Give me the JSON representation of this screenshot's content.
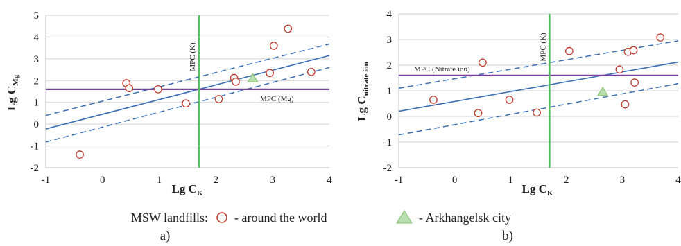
{
  "chart_data": [
    {
      "panel_label": "a)",
      "type": "scatter",
      "xlabel_main": "Lg C",
      "xlabel_sub": "K",
      "ylabel_main": "Lg C",
      "ylabel_sub": "Mg",
      "xlim": [
        -1,
        4
      ],
      "ylim": [
        -2,
        5
      ],
      "xticks": [
        "-1",
        "0",
        "1",
        "2",
        "3",
        "4"
      ],
      "yticks": [
        "-2",
        "-1",
        "0",
        "1",
        "2",
        "3",
        "4",
        "5"
      ],
      "grid": "horizontal",
      "points_world": [
        [
          -0.4,
          -1.4
        ],
        [
          0.42,
          1.88
        ],
        [
          0.47,
          1.65
        ],
        [
          0.98,
          1.6
        ],
        [
          1.47,
          0.95
        ],
        [
          2.05,
          1.15
        ],
        [
          2.32,
          2.12
        ],
        [
          2.35,
          1.95
        ],
        [
          2.95,
          2.35
        ],
        [
          3.02,
          3.6
        ],
        [
          3.27,
          4.38
        ],
        [
          3.68,
          2.4
        ]
      ],
      "points_arkhangelsk": [
        [
          2.65,
          2.1
        ]
      ],
      "regression": {
        "x": [
          -1,
          4
        ],
        "y": [
          -0.22,
          3.15
        ]
      },
      "ci_upper": {
        "x": [
          -1,
          4
        ],
        "y": [
          0.4,
          3.68
        ]
      },
      "ci_lower": {
        "x": [
          -1,
          4
        ],
        "y": [
          -0.82,
          2.6
        ]
      },
      "mpc_vertical": {
        "x": 1.7,
        "label": "MPC (K)"
      },
      "mpc_horizontal": {
        "y": 1.6,
        "label": "MPC (Mg)"
      },
      "colors": {
        "world": "#c0392b",
        "arkhangelsk_fill": "#b9dfae",
        "arkhangelsk_stroke": "#7fbf6a",
        "regression": "#3a6fb4",
        "mpc_vertical": "#4dbb5a",
        "mpc_horizontal": "#7b3fa0"
      }
    },
    {
      "panel_label": "b)",
      "type": "scatter",
      "xlabel_main": "Lg C",
      "xlabel_sub": "K",
      "ylabel_main": "Lg C",
      "ylabel_sub": "nitrate ion",
      "xlim": [
        -1,
        4
      ],
      "ylim": [
        -2,
        4
      ],
      "xticks": [
        "-1",
        "0",
        "1",
        "2",
        "3",
        "4"
      ],
      "yticks": [
        "-2",
        "-1",
        "0",
        "1",
        "2",
        "3",
        "4"
      ],
      "grid": "horizontal",
      "points_world": [
        [
          -0.38,
          0.65
        ],
        [
          0.42,
          0.13
        ],
        [
          0.5,
          2.1
        ],
        [
          0.98,
          0.65
        ],
        [
          1.47,
          0.15
        ],
        [
          2.05,
          2.55
        ],
        [
          2.95,
          1.83
        ],
        [
          3.05,
          0.47
        ],
        [
          3.1,
          2.52
        ],
        [
          3.2,
          2.58
        ],
        [
          3.22,
          1.32
        ],
        [
          3.68,
          3.08
        ]
      ],
      "points_arkhangelsk": [
        [
          2.65,
          0.95
        ]
      ],
      "regression": {
        "x": [
          -1,
          4
        ],
        "y": [
          0.2,
          2.12
        ]
      },
      "ci_upper": {
        "x": [
          -1,
          4
        ],
        "y": [
          1.1,
          2.95
        ]
      },
      "ci_lower": {
        "x": [
          -1,
          4
        ],
        "y": [
          -0.72,
          1.28
        ]
      },
      "mpc_vertical": {
        "x": 1.7,
        "label": "MPC (K)"
      },
      "mpc_horizontal": {
        "y": 1.6,
        "label": "MPC (Nitrate ion)"
      },
      "colors": {
        "world": "#c0392b",
        "arkhangelsk_fill": "#b9dfae",
        "arkhangelsk_stroke": "#7fbf6a",
        "regression": "#3a6fb4",
        "mpc_vertical": "#4dbb5a",
        "mpc_horizontal": "#7b3fa0"
      }
    }
  ],
  "legend": {
    "title": "MSW landfills:",
    "world_label": "- around the world",
    "arkhangelsk_label": "- Arkhangelsk city"
  }
}
